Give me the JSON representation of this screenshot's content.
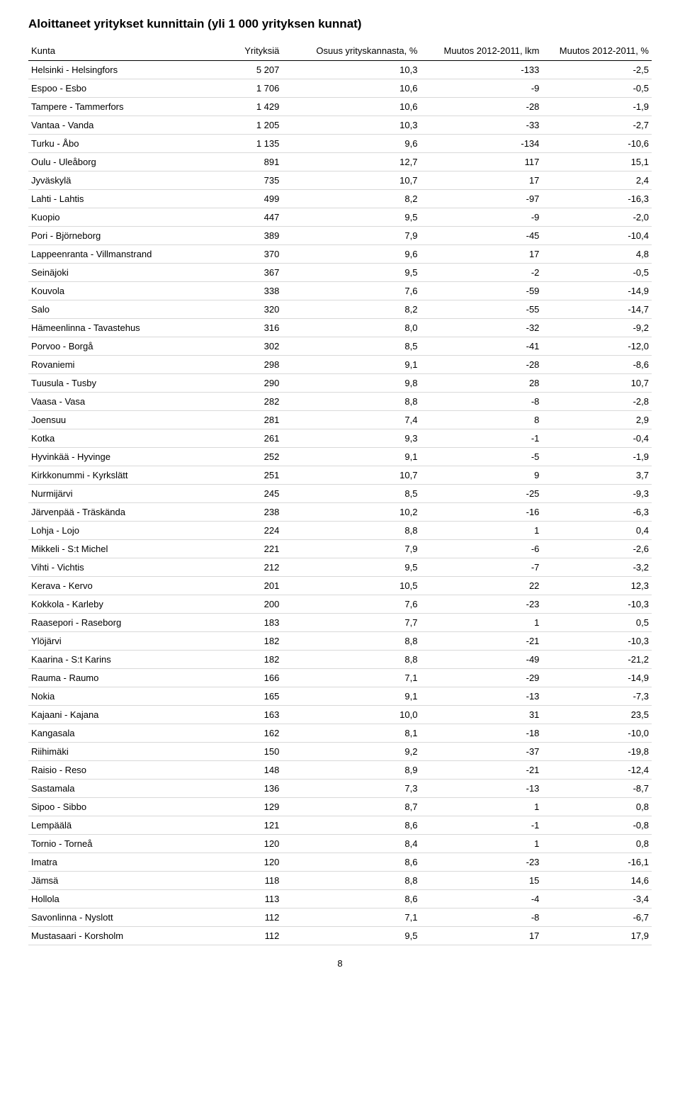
{
  "title": "Aloittaneet yritykset kunnittain (yli 1 000 yrityksen kunnat)",
  "page_number": "8",
  "table": {
    "columns": [
      {
        "key": "kunta",
        "label": "Kunta",
        "align": "left"
      },
      {
        "key": "yrityksia",
        "label": "Yrityksiä",
        "align": "right"
      },
      {
        "key": "osuus",
        "label": "Osuus yrityskannasta, %",
        "align": "right"
      },
      {
        "key": "muutos_lkm",
        "label": "Muutos 2012-2011, lkm",
        "align": "right"
      },
      {
        "key": "muutos_pct",
        "label": "Muutos 2012-2011, %",
        "align": "right"
      }
    ],
    "rows": [
      {
        "kunta": "Helsinki - Helsingfors",
        "yrityksia": "5 207",
        "osuus": "10,3",
        "muutos_lkm": "-133",
        "muutos_pct": "-2,5"
      },
      {
        "kunta": "Espoo - Esbo",
        "yrityksia": "1 706",
        "osuus": "10,6",
        "muutos_lkm": "-9",
        "muutos_pct": "-0,5"
      },
      {
        "kunta": "Tampere - Tammerfors",
        "yrityksia": "1 429",
        "osuus": "10,6",
        "muutos_lkm": "-28",
        "muutos_pct": "-1,9"
      },
      {
        "kunta": "Vantaa - Vanda",
        "yrityksia": "1 205",
        "osuus": "10,3",
        "muutos_lkm": "-33",
        "muutos_pct": "-2,7"
      },
      {
        "kunta": "Turku - Åbo",
        "yrityksia": "1 135",
        "osuus": "9,6",
        "muutos_lkm": "-134",
        "muutos_pct": "-10,6"
      },
      {
        "kunta": "Oulu - Uleåborg",
        "yrityksia": "891",
        "osuus": "12,7",
        "muutos_lkm": "117",
        "muutos_pct": "15,1"
      },
      {
        "kunta": "Jyväskylä",
        "yrityksia": "735",
        "osuus": "10,7",
        "muutos_lkm": "17",
        "muutos_pct": "2,4"
      },
      {
        "kunta": "Lahti - Lahtis",
        "yrityksia": "499",
        "osuus": "8,2",
        "muutos_lkm": "-97",
        "muutos_pct": "-16,3"
      },
      {
        "kunta": "Kuopio",
        "yrityksia": "447",
        "osuus": "9,5",
        "muutos_lkm": "-9",
        "muutos_pct": "-2,0"
      },
      {
        "kunta": "Pori - Björneborg",
        "yrityksia": "389",
        "osuus": "7,9",
        "muutos_lkm": "-45",
        "muutos_pct": "-10,4"
      },
      {
        "kunta": "Lappeenranta - Villmanstrand",
        "yrityksia": "370",
        "osuus": "9,6",
        "muutos_lkm": "17",
        "muutos_pct": "4,8"
      },
      {
        "kunta": "Seinäjoki",
        "yrityksia": "367",
        "osuus": "9,5",
        "muutos_lkm": "-2",
        "muutos_pct": "-0,5"
      },
      {
        "kunta": "Kouvola",
        "yrityksia": "338",
        "osuus": "7,6",
        "muutos_lkm": "-59",
        "muutos_pct": "-14,9"
      },
      {
        "kunta": "Salo",
        "yrityksia": "320",
        "osuus": "8,2",
        "muutos_lkm": "-55",
        "muutos_pct": "-14,7"
      },
      {
        "kunta": "Hämeenlinna - Tavastehus",
        "yrityksia": "316",
        "osuus": "8,0",
        "muutos_lkm": "-32",
        "muutos_pct": "-9,2"
      },
      {
        "kunta": "Porvoo - Borgå",
        "yrityksia": "302",
        "osuus": "8,5",
        "muutos_lkm": "-41",
        "muutos_pct": "-12,0"
      },
      {
        "kunta": "Rovaniemi",
        "yrityksia": "298",
        "osuus": "9,1",
        "muutos_lkm": "-28",
        "muutos_pct": "-8,6"
      },
      {
        "kunta": "Tuusula - Tusby",
        "yrityksia": "290",
        "osuus": "9,8",
        "muutos_lkm": "28",
        "muutos_pct": "10,7"
      },
      {
        "kunta": "Vaasa - Vasa",
        "yrityksia": "282",
        "osuus": "8,8",
        "muutos_lkm": "-8",
        "muutos_pct": "-2,8"
      },
      {
        "kunta": "Joensuu",
        "yrityksia": "281",
        "osuus": "7,4",
        "muutos_lkm": "8",
        "muutos_pct": "2,9"
      },
      {
        "kunta": "Kotka",
        "yrityksia": "261",
        "osuus": "9,3",
        "muutos_lkm": "-1",
        "muutos_pct": "-0,4"
      },
      {
        "kunta": "Hyvinkää - Hyvinge",
        "yrityksia": "252",
        "osuus": "9,1",
        "muutos_lkm": "-5",
        "muutos_pct": "-1,9"
      },
      {
        "kunta": "Kirkkonummi - Kyrkslätt",
        "yrityksia": "251",
        "osuus": "10,7",
        "muutos_lkm": "9",
        "muutos_pct": "3,7"
      },
      {
        "kunta": "Nurmijärvi",
        "yrityksia": "245",
        "osuus": "8,5",
        "muutos_lkm": "-25",
        "muutos_pct": "-9,3"
      },
      {
        "kunta": "Järvenpää - Träskända",
        "yrityksia": "238",
        "osuus": "10,2",
        "muutos_lkm": "-16",
        "muutos_pct": "-6,3"
      },
      {
        "kunta": "Lohja - Lojo",
        "yrityksia": "224",
        "osuus": "8,8",
        "muutos_lkm": "1",
        "muutos_pct": "0,4"
      },
      {
        "kunta": "Mikkeli - S:t Michel",
        "yrityksia": "221",
        "osuus": "7,9",
        "muutos_lkm": "-6",
        "muutos_pct": "-2,6"
      },
      {
        "kunta": "Vihti - Vichtis",
        "yrityksia": "212",
        "osuus": "9,5",
        "muutos_lkm": "-7",
        "muutos_pct": "-3,2"
      },
      {
        "kunta": "Kerava - Kervo",
        "yrityksia": "201",
        "osuus": "10,5",
        "muutos_lkm": "22",
        "muutos_pct": "12,3"
      },
      {
        "kunta": "Kokkola - Karleby",
        "yrityksia": "200",
        "osuus": "7,6",
        "muutos_lkm": "-23",
        "muutos_pct": "-10,3"
      },
      {
        "kunta": "Raasepori - Raseborg",
        "yrityksia": "183",
        "osuus": "7,7",
        "muutos_lkm": "1",
        "muutos_pct": "0,5"
      },
      {
        "kunta": "Ylöjärvi",
        "yrityksia": "182",
        "osuus": "8,8",
        "muutos_lkm": "-21",
        "muutos_pct": "-10,3"
      },
      {
        "kunta": "Kaarina - S:t Karins",
        "yrityksia": "182",
        "osuus": "8,8",
        "muutos_lkm": "-49",
        "muutos_pct": "-21,2"
      },
      {
        "kunta": "Rauma - Raumo",
        "yrityksia": "166",
        "osuus": "7,1",
        "muutos_lkm": "-29",
        "muutos_pct": "-14,9"
      },
      {
        "kunta": "Nokia",
        "yrityksia": "165",
        "osuus": "9,1",
        "muutos_lkm": "-13",
        "muutos_pct": "-7,3"
      },
      {
        "kunta": "Kajaani - Kajana",
        "yrityksia": "163",
        "osuus": "10,0",
        "muutos_lkm": "31",
        "muutos_pct": "23,5"
      },
      {
        "kunta": "Kangasala",
        "yrityksia": "162",
        "osuus": "8,1",
        "muutos_lkm": "-18",
        "muutos_pct": "-10,0"
      },
      {
        "kunta": "Riihimäki",
        "yrityksia": "150",
        "osuus": "9,2",
        "muutos_lkm": "-37",
        "muutos_pct": "-19,8"
      },
      {
        "kunta": "Raisio - Reso",
        "yrityksia": "148",
        "osuus": "8,9",
        "muutos_lkm": "-21",
        "muutos_pct": "-12,4"
      },
      {
        "kunta": "Sastamala",
        "yrityksia": "136",
        "osuus": "7,3",
        "muutos_lkm": "-13",
        "muutos_pct": "-8,7"
      },
      {
        "kunta": "Sipoo - Sibbo",
        "yrityksia": "129",
        "osuus": "8,7",
        "muutos_lkm": "1",
        "muutos_pct": "0,8"
      },
      {
        "kunta": "Lempäälä",
        "yrityksia": "121",
        "osuus": "8,6",
        "muutos_lkm": "-1",
        "muutos_pct": "-0,8"
      },
      {
        "kunta": "Tornio - Torneå",
        "yrityksia": "120",
        "osuus": "8,4",
        "muutos_lkm": "1",
        "muutos_pct": "0,8"
      },
      {
        "kunta": "Imatra",
        "yrityksia": "120",
        "osuus": "8,6",
        "muutos_lkm": "-23",
        "muutos_pct": "-16,1"
      },
      {
        "kunta": "Jämsä",
        "yrityksia": "118",
        "osuus": "8,8",
        "muutos_lkm": "15",
        "muutos_pct": "14,6"
      },
      {
        "kunta": "Hollola",
        "yrityksia": "113",
        "osuus": "8,6",
        "muutos_lkm": "-4",
        "muutos_pct": "-3,4"
      },
      {
        "kunta": "Savonlinna - Nyslott",
        "yrityksia": "112",
        "osuus": "7,1",
        "muutos_lkm": "-8",
        "muutos_pct": "-6,7"
      },
      {
        "kunta": "Mustasaari - Korsholm",
        "yrityksia": "112",
        "osuus": "9,5",
        "muutos_lkm": "17",
        "muutos_pct": "17,9"
      }
    ]
  }
}
